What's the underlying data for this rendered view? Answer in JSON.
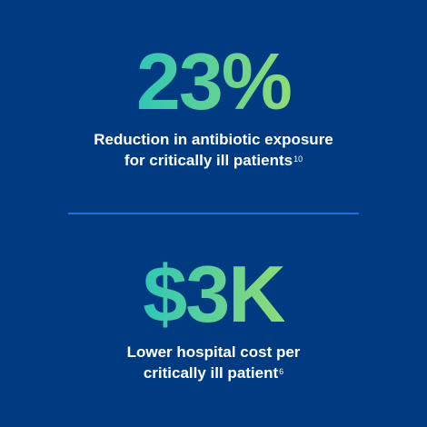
{
  "background_color": "#003b82",
  "accent_gradient": [
    "#2fc7b5",
    "#8fdc76"
  ],
  "divider_color": "#1e6fe0",
  "stats": [
    {
      "value": "23%",
      "caption_line1": "Reduction in antibiotic exposure",
      "caption_line2": "for critically ill patients",
      "footnote": "10"
    },
    {
      "value": "$3K",
      "caption_line1": "Lower hospital cost per",
      "caption_line2": "critically ill patient",
      "footnote": "6"
    }
  ]
}
